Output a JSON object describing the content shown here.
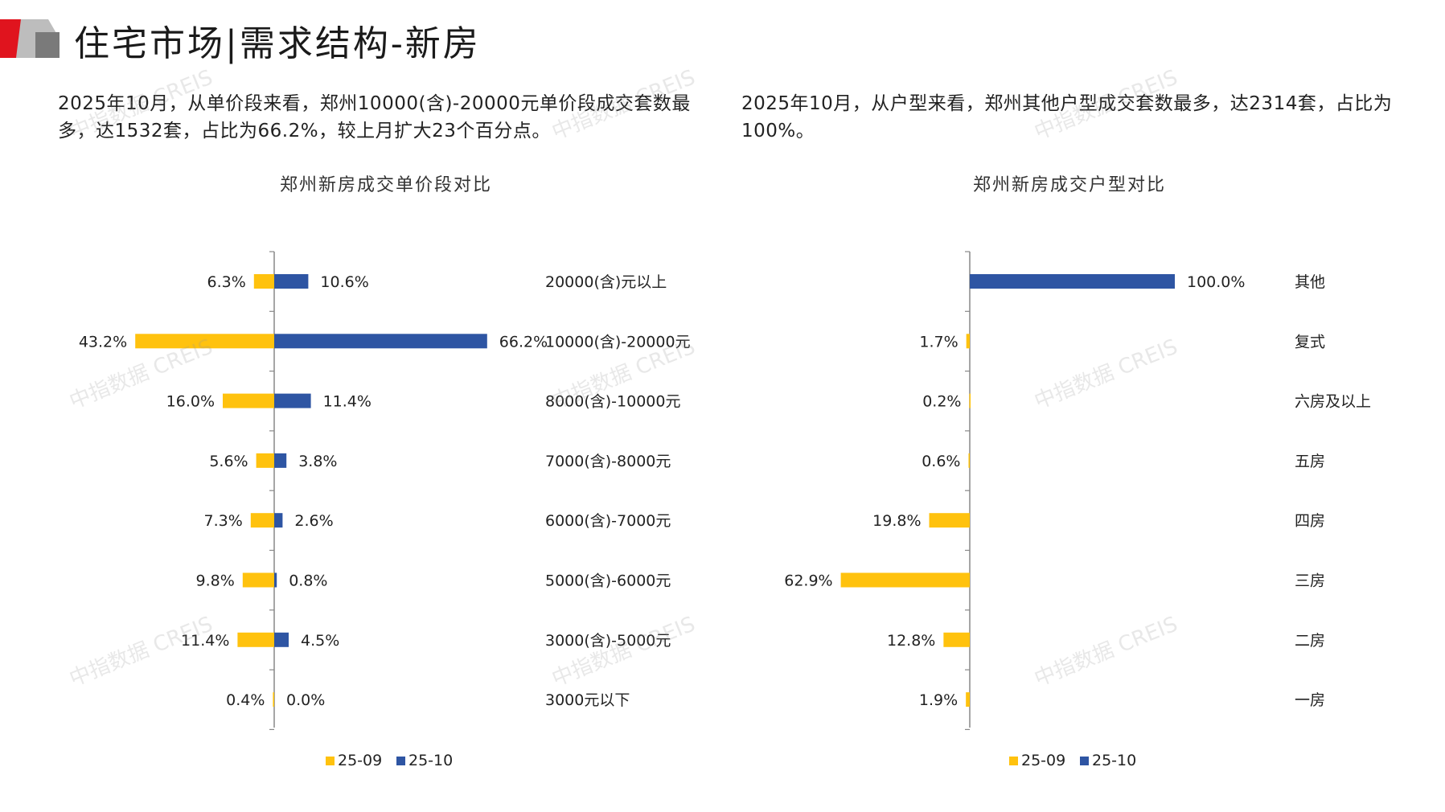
{
  "header": {
    "title": "住宅市场|需求结构-新房"
  },
  "paragraphs": {
    "left": "2025年10月，从单价段来看，郑州10000(含)-20000元单价段成交套数最多，达1532套，占比为66.2%，较上月扩大23个百分点。",
    "right": "2025年10月，从户型来看，郑州其他户型成交套数最多，达2314套，占比为100%。"
  },
  "watermark": "中指数据 CREIS",
  "colors": {
    "series_prev": "#FFC20E",
    "series_curr": "#2E55A3",
    "axis": "#888888",
    "logo_red": "#E0141E",
    "logo_gray": "#9A9A9A"
  },
  "chart_data": [
    {
      "type": "bar",
      "orientation": "horizontal",
      "layout": "diverging",
      "title": "郑州新房成交单价段对比",
      "categories": [
        "20000(含)元以上",
        "10000(含)-20000元",
        "8000(含)-10000元",
        "7000(含)-8000元",
        "6000(含)-7000元",
        "5000(含)-6000元",
        "3000(含)-5000元",
        "3000元以下"
      ],
      "series": [
        {
          "name": "25-09",
          "values": [
            6.3,
            43.2,
            16.0,
            5.6,
            7.3,
            9.8,
            11.4,
            0.4
          ],
          "labels": [
            "6.3%",
            "43.2%",
            "16.0%",
            "5.6%",
            "7.3%",
            "9.8%",
            "11.4%",
            "0.4%"
          ]
        },
        {
          "name": "25-10",
          "values": [
            10.6,
            66.2,
            11.4,
            3.8,
            2.6,
            0.8,
            4.5,
            0.0
          ],
          "labels": [
            "10.6%",
            "66.2%",
            "11.4%",
            "3.8%",
            "2.6%",
            "0.8%",
            "4.5%",
            "0.0%"
          ]
        }
      ],
      "unit": "%",
      "legend": "bottom",
      "grid": false
    },
    {
      "type": "bar",
      "orientation": "horizontal",
      "layout": "diverging",
      "title": "郑州新房成交户型对比",
      "categories": [
        "其他",
        "复式",
        "六房及以上",
        "五房",
        "四房",
        "三房",
        "二房",
        "一房"
      ],
      "series": [
        {
          "name": "25-09",
          "values": [
            0,
            1.7,
            0.2,
            0.6,
            19.8,
            62.9,
            12.8,
            1.9
          ],
          "labels": [
            "",
            "1.7%",
            "0.2%",
            "0.6%",
            "19.8%",
            "62.9%",
            "12.8%",
            "1.9%"
          ]
        },
        {
          "name": "25-10",
          "values": [
            100.0,
            0,
            0,
            0,
            0,
            0,
            0,
            0
          ],
          "labels": [
            "100.0%",
            "",
            "",
            "",
            "",
            "",
            "",
            ""
          ]
        }
      ],
      "unit": "%",
      "legend": "bottom",
      "grid": false
    }
  ]
}
